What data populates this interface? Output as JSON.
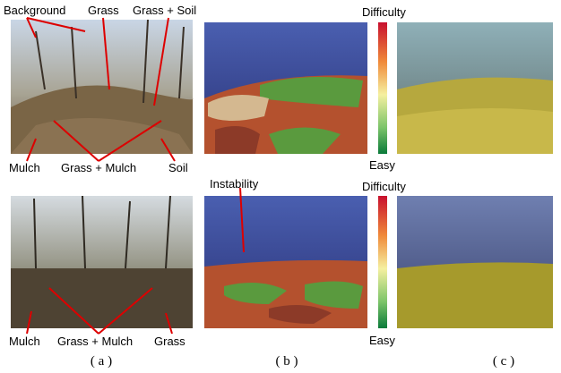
{
  "row1": {
    "labels": [
      "Background",
      "Grass",
      "Grass + Soil",
      "Mulch",
      "Grass + Mulch",
      "Soil"
    ],
    "difficulty": "Difficulty",
    "easy": "Easy"
  },
  "row2": {
    "labels": [
      "Mulch",
      "Grass + Mulch",
      "Grass"
    ],
    "annotation": "Instability",
    "difficulty": "Difficulty",
    "easy": "Easy"
  },
  "captions": [
    "( a )",
    "( b )",
    "( c )"
  ]
}
